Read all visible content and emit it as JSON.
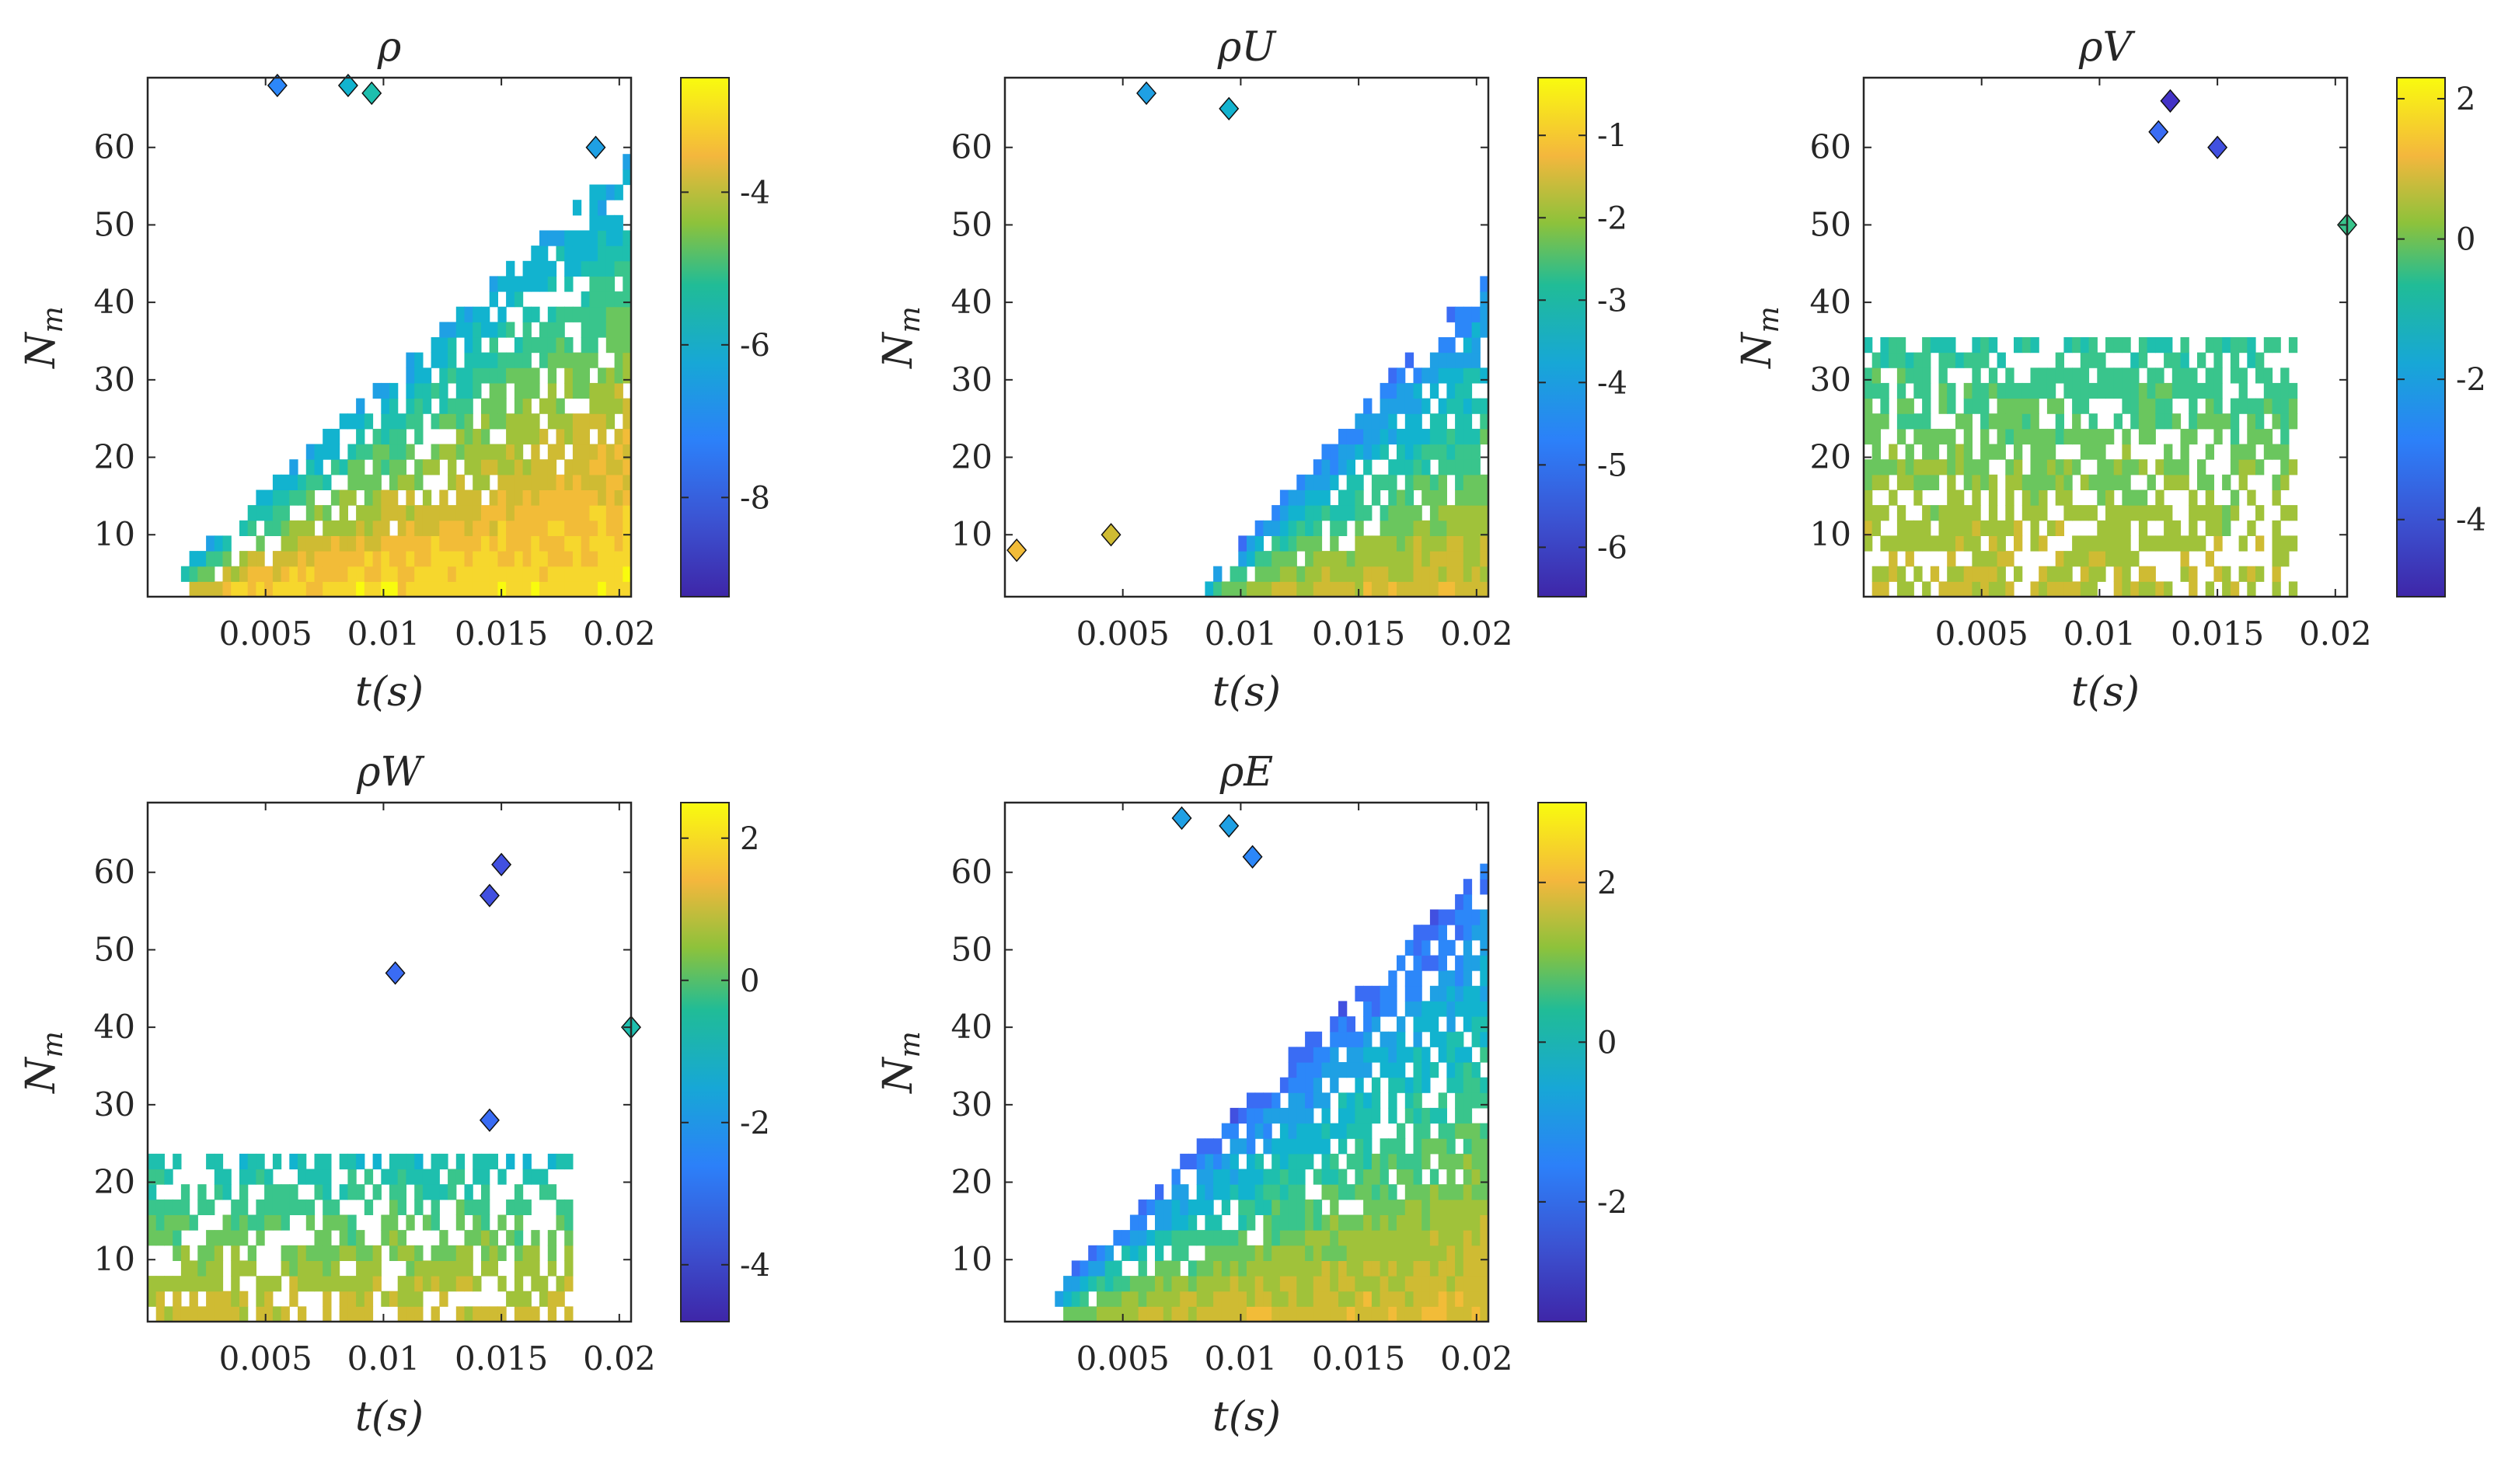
{
  "chart_data": [
    {
      "id": "rho",
      "type": "heatmap",
      "title": "ρ",
      "xlabel": "t(s)",
      "ylabel": "N_m",
      "xlim": [
        0,
        0.0205
      ],
      "ylim": [
        2,
        69
      ],
      "xticks": [
        0.005,
        0.01,
        0.015,
        0.02
      ],
      "xtick_labels": [
        "0.005",
        "0.01",
        "0.015",
        "0.02"
      ],
      "yticks": [
        10,
        20,
        30,
        40,
        50,
        60
      ],
      "ytick_labels": [
        "10",
        "20",
        "30",
        "40",
        "50",
        "60"
      ],
      "clim": [
        -9.3,
        -2.5
      ],
      "cticks": [
        -8,
        -6,
        -4
      ],
      "ctick_labels": [
        "-8",
        "-6",
        "-4"
      ],
      "region": {
        "t_start": 0.0015,
        "t_end": 0.0205,
        "slope": 2800,
        "n0": 6,
        "core_value": -2.8,
        "edge_value": -6.8
      },
      "islands": [
        [
          0.0055,
          68,
          -7.5
        ],
        [
          0.0085,
          68,
          -6.5
        ],
        [
          0.0095,
          67,
          -6.0
        ],
        [
          0.019,
          60,
          -7.0
        ]
      ]
    },
    {
      "id": "rhoU",
      "type": "heatmap",
      "title": "ρU",
      "xlabel": "t(s)",
      "ylabel": "N_m",
      "xlim": [
        0,
        0.0205
      ],
      "ylim": [
        2,
        69
      ],
      "xticks": [
        0.005,
        0.01,
        0.015,
        0.02
      ],
      "xtick_labels": [
        "0.005",
        "0.01",
        "0.015",
        "0.02"
      ],
      "yticks": [
        10,
        20,
        30,
        40,
        50,
        60
      ],
      "ytick_labels": [
        "10",
        "20",
        "30",
        "40",
        "50",
        "60"
      ],
      "clim": [
        -6.6,
        -0.3
      ],
      "cticks": [
        -6,
        -5,
        -4,
        -3,
        -2,
        -1
      ],
      "ctick_labels": [
        "-6",
        "-5",
        "-4",
        "-3",
        "-2",
        "-1"
      ],
      "region": {
        "t_start": 0.008,
        "t_end": 0.0205,
        "slope": 3400,
        "n0": 2,
        "core_value": -1.5,
        "edge_value": -5.0
      },
      "islands": [
        [
          0.0005,
          8,
          -1.0
        ],
        [
          0.006,
          67,
          -4.5
        ],
        [
          0.0095,
          65,
          -4.0
        ],
        [
          0.0045,
          10,
          -1.5
        ]
      ]
    },
    {
      "id": "rhoV",
      "type": "heatmap",
      "title": "ρV",
      "xlabel": "t(s)",
      "ylabel": "N_m",
      "xlim": [
        0,
        0.0205
      ],
      "ylim": [
        2,
        69
      ],
      "xticks": [
        0.005,
        0.01,
        0.015,
        0.02
      ],
      "xtick_labels": [
        "0.005",
        "0.01",
        "0.015",
        "0.02"
      ],
      "yticks": [
        10,
        20,
        30,
        40,
        50,
        60
      ],
      "ytick_labels": [
        "10",
        "20",
        "30",
        "40",
        "50",
        "60"
      ],
      "clim": [
        -5.1,
        2.3
      ],
      "cticks": [
        -4,
        -2,
        0,
        2
      ],
      "ctick_labels": [
        "-4",
        "-2",
        "0",
        "2"
      ],
      "region": {
        "t_start": 0.0,
        "t_end": 0.0185,
        "slope": 0,
        "n0": 36,
        "core_value": 0.6,
        "edge_value": -1.2
      },
      "islands": [
        [
          0.013,
          66,
          -4.5
        ],
        [
          0.0125,
          62,
          -3.5
        ],
        [
          0.015,
          60,
          -4.0
        ],
        [
          0.0205,
          50,
          -1.0
        ]
      ]
    },
    {
      "id": "rhoW",
      "type": "heatmap",
      "title": "ρW",
      "xlabel": "t(s)",
      "ylabel": "N_m",
      "xlim": [
        0,
        0.0205
      ],
      "ylim": [
        2,
        69
      ],
      "xticks": [
        0.005,
        0.01,
        0.015,
        0.02
      ],
      "xtick_labels": [
        "0.005",
        "0.01",
        "0.015",
        "0.02"
      ],
      "yticks": [
        10,
        20,
        30,
        40,
        50,
        60
      ],
      "ytick_labels": [
        "10",
        "20",
        "30",
        "40",
        "50",
        "60"
      ],
      "clim": [
        -4.8,
        2.5
      ],
      "cticks": [
        -4,
        -2,
        0,
        2
      ],
      "ctick_labels": [
        "-4",
        "-2",
        "0",
        "2"
      ],
      "region": {
        "t_start": 0.0,
        "t_end": 0.018,
        "slope": 0,
        "n0": 24,
        "core_value": 1.0,
        "edge_value": -1.5
      },
      "islands": [
        [
          0.015,
          61,
          -4.0
        ],
        [
          0.0145,
          57,
          -3.5
        ],
        [
          0.0105,
          47,
          -3.0
        ],
        [
          0.0145,
          28,
          -3.0
        ],
        [
          0.0205,
          40,
          -1.0
        ]
      ]
    },
    {
      "id": "rhoE",
      "type": "heatmap",
      "title": "ρE",
      "xlabel": "t(s)",
      "ylabel": "N_m",
      "xlim": [
        0,
        0.0205
      ],
      "ylim": [
        2,
        69
      ],
      "xticks": [
        0.005,
        0.01,
        0.015,
        0.02
      ],
      "xtick_labels": [
        "0.005",
        "0.01",
        "0.015",
        "0.02"
      ],
      "yticks": [
        10,
        20,
        30,
        40,
        50,
        60
      ],
      "ytick_labels": [
        "10",
        "20",
        "30",
        "40",
        "50",
        "60"
      ],
      "clim": [
        -3.5,
        3.0
      ],
      "cticks": [
        -2,
        0,
        2
      ],
      "ctick_labels": [
        "-2",
        "0",
        "2"
      ],
      "region": {
        "t_start": 0.002,
        "t_end": 0.0205,
        "slope": 3000,
        "n0": 6,
        "core_value": 1.8,
        "edge_value": -2.2
      },
      "islands": [
        [
          0.0075,
          67,
          -1.0
        ],
        [
          0.0095,
          66,
          -1.0
        ],
        [
          0.0105,
          62,
          -1.5
        ]
      ]
    }
  ]
}
